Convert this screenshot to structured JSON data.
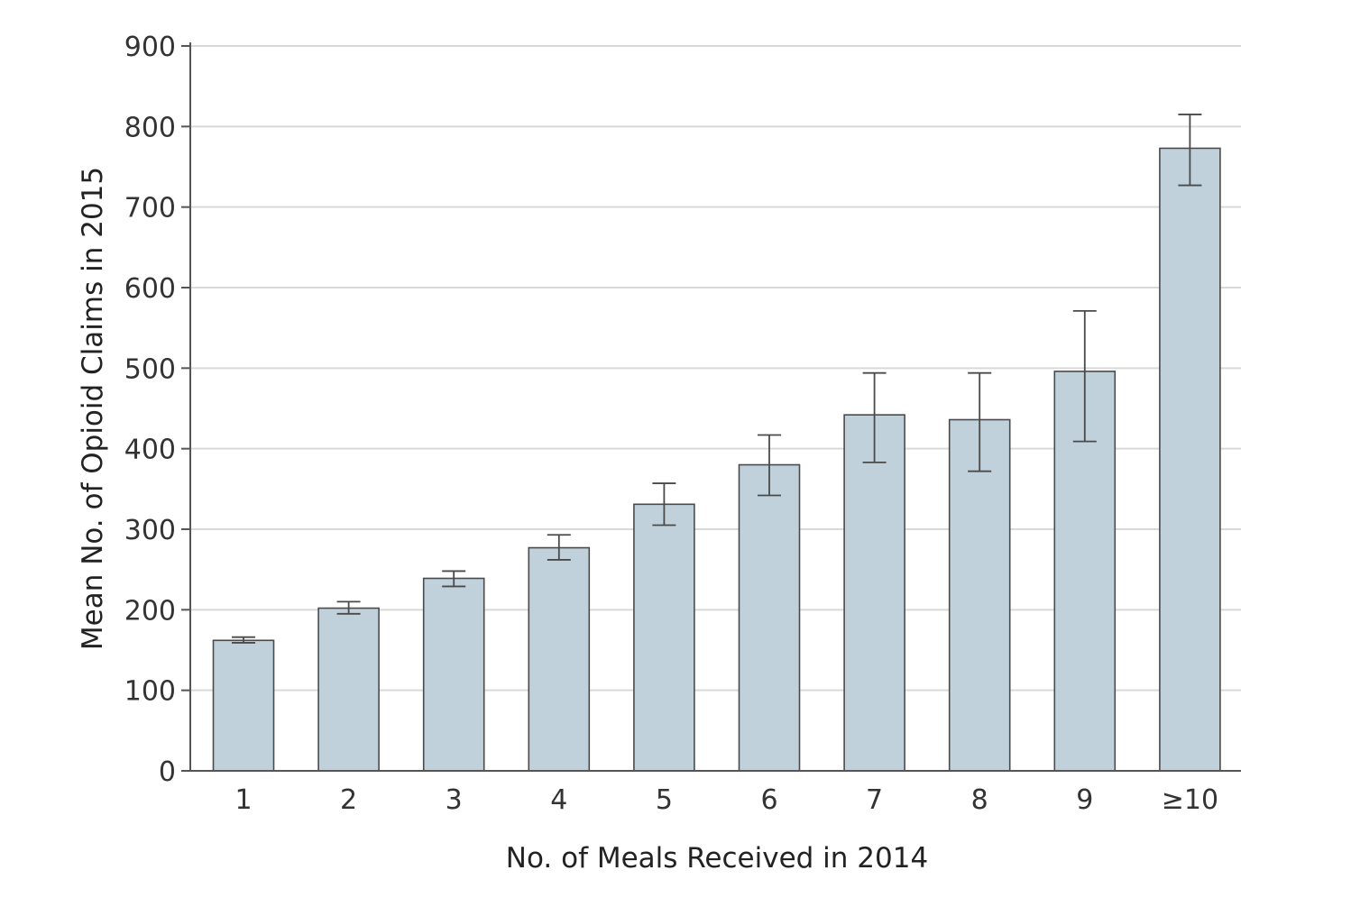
{
  "chart_data": {
    "type": "bar",
    "title": "",
    "xlabel": "No. of Meals Received in 2014",
    "ylabel": "Mean No. of Opioid Claims in 2015",
    "ylim": [
      0,
      900
    ],
    "yticks": [
      0,
      100,
      200,
      300,
      400,
      500,
      600,
      700,
      800,
      900
    ],
    "grid": "horizontal",
    "legend": "none",
    "colors": {
      "bar_fill": "#c0d1dc",
      "bar_stroke": "#4a4a4a",
      "grid": "#d9d9d9"
    },
    "categories": [
      "1",
      "2",
      "3",
      "4",
      "5",
      "6",
      "7",
      "8",
      "9",
      "≥10"
    ],
    "values": [
      162,
      202,
      239,
      277,
      331,
      380,
      442,
      436,
      496,
      773
    ],
    "error_low": [
      159,
      195,
      229,
      262,
      305,
      342,
      383,
      372,
      409,
      727
    ],
    "error_high": [
      166,
      210,
      248,
      293,
      357,
      417,
      494,
      494,
      571,
      815
    ]
  }
}
